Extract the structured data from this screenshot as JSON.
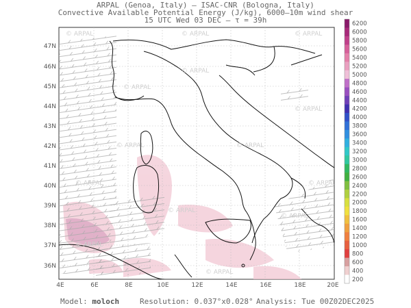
{
  "header": {
    "line1": "ARPAL (Genoa, Italy)  –  ISAC-CNR (Bologna, Italy)",
    "line2": "Convective Available Potential Energy (J/kg), 6000–10m wind shear",
    "line3": "15 UTC Wed 03 DEC  –  τ = 39h"
  },
  "map": {
    "lat_labels": [
      "47N",
      "46N",
      "45N",
      "44N",
      "43N",
      "42N",
      "41N",
      "40N",
      "39N",
      "38N",
      "37N",
      "36N"
    ],
    "lon_labels": [
      "4E",
      "6E",
      "8E",
      "10E",
      "12E",
      "14E",
      "16E",
      "18E",
      "20E"
    ],
    "watermark": "© ARPAL"
  },
  "colorbar": {
    "labels": [
      "6200",
      "6000",
      "5800",
      "5600",
      "5400",
      "5200",
      "5000",
      "4800",
      "4600",
      "4400",
      "4200",
      "4000",
      "3800",
      "3600",
      "3400",
      "3200",
      "3000",
      "2800",
      "2600",
      "2400",
      "2200",
      "2000",
      "1800",
      "1600",
      "1400",
      "1200",
      "1000",
      "800",
      "600",
      "400",
      "200"
    ],
    "colors": [
      "#8a1a6a",
      "#a82a7a",
      "#c0408a",
      "#d6609a",
      "#e480aa",
      "#eaa0c0",
      "#f0c0d8",
      "#c070c8",
      "#9a50c0",
      "#7040b8",
      "#4030b0",
      "#3050c8",
      "#3070d8",
      "#3090e0",
      "#30b0e0",
      "#30c8c8",
      "#30c8a0",
      "#30b860",
      "#40b040",
      "#80c040",
      "#b0d040",
      "#d8e040",
      "#f0e040",
      "#f0c040",
      "#f0a040",
      "#f08040",
      "#e86040",
      "#e04040",
      "#d8a0a0",
      "#f0d0d0",
      "#ffffff"
    ]
  },
  "footer": {
    "model_label": "Model:",
    "model_value": "moloch",
    "resolution_label": "Resolution:",
    "resolution_value": "0.037°x0.028°",
    "analysis_label": "Analysis:",
    "analysis_value": "Tue 00Z02DEC2025"
  }
}
